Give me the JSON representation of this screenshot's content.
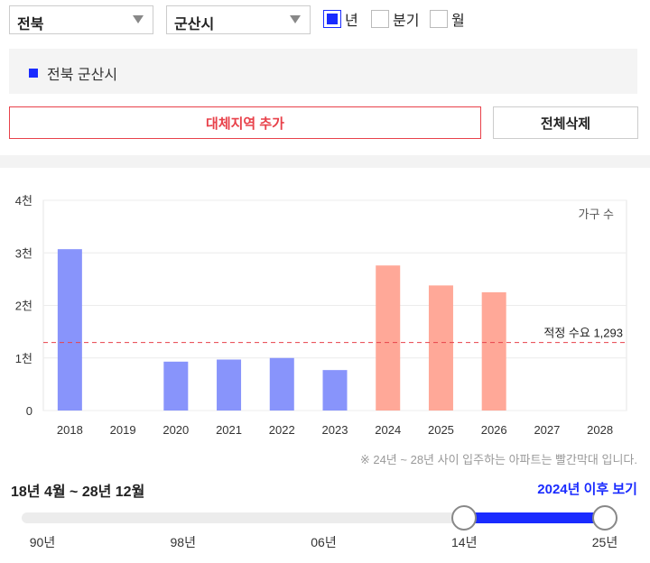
{
  "filters": {
    "region": "전북",
    "city": "군산시"
  },
  "period_options": [
    {
      "label": "년",
      "checked": true
    },
    {
      "label": "분기",
      "checked": false
    },
    {
      "label": "월",
      "checked": false
    }
  ],
  "selected_regions": [
    "전북 군산시"
  ],
  "buttons": {
    "add": "대체지역 추가",
    "clear": "전체삭제"
  },
  "chart_data": {
    "type": "bar",
    "categories": [
      "2018",
      "2019",
      "2020",
      "2021",
      "2022",
      "2023",
      "2024",
      "2025",
      "2026",
      "2027",
      "2028"
    ],
    "values": [
      3070,
      0,
      930,
      970,
      1000,
      770,
      2760,
      2380,
      2250,
      0,
      0
    ],
    "bar_colors": [
      "#8894fb",
      "#8894fb",
      "#8894fb",
      "#8894fb",
      "#8894fb",
      "#8894fb",
      "#ffa898",
      "#ffa898",
      "#ffa898",
      "#ffa898",
      "#ffa898"
    ],
    "ylim": [
      0,
      4000
    ],
    "y_ticks": [
      0,
      1000,
      2000,
      3000,
      4000
    ],
    "y_tick_labels": [
      "0",
      "1천",
      "2천",
      "3천",
      "4천"
    ],
    "unit_label": "가구 수",
    "reference_line": {
      "value": 1293,
      "label": "적정 수요 1,293",
      "color": "#e8414a"
    },
    "grid": true
  },
  "note": "※ 24년 ~ 28년 사이 입주하는 아파트는 빨간막대 입니다.",
  "range": {
    "label": "18년 4월 ~ 28년 12월",
    "after_link": "2024년 이후 보기",
    "ticks": [
      "90년",
      "98년",
      "06년",
      "14년",
      "25년"
    ],
    "start_fraction": 0.75,
    "end_fraction": 1.0
  },
  "colors": {
    "accent": "#1a2bff",
    "past_bar": "#8894fb",
    "future_bar": "#ffa898",
    "danger": "#e8414a"
  }
}
